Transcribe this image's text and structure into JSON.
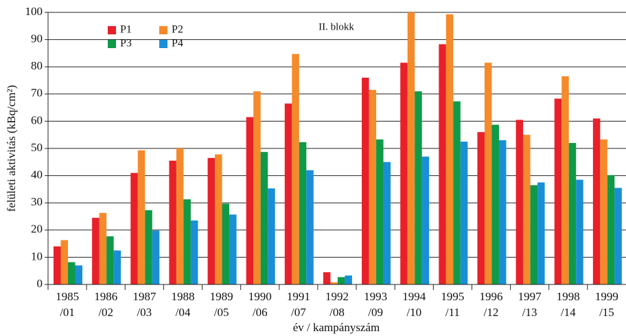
{
  "chart_data": {
    "type": "bar",
    "annotation": "II. blokk",
    "ylabel": "felületi aktivitás (kBq/cm²)",
    "xlabel": "év / kampányszám",
    "categories": [
      [
        "1985",
        "/01"
      ],
      [
        "1986",
        "/02"
      ],
      [
        "1987",
        "/03"
      ],
      [
        "1988",
        "/04"
      ],
      [
        "1989",
        "/05"
      ],
      [
        "1990",
        "/06"
      ],
      [
        "1991",
        "/07"
      ],
      [
        "1992",
        "/08"
      ],
      [
        "1993",
        "/09"
      ],
      [
        "1994",
        "/10"
      ],
      [
        "1995",
        "/11"
      ],
      [
        "1996",
        "/12"
      ],
      [
        "1997",
        "/13"
      ],
      [
        "1998",
        "/14"
      ],
      [
        "1999",
        "/15"
      ]
    ],
    "series": [
      {
        "name": "P1",
        "color": "#e8202a",
        "values": [
          14,
          24.5,
          41,
          45.5,
          46.5,
          61.5,
          66.5,
          4.5,
          76,
          81.5,
          88.3,
          56,
          60.5,
          68.3,
          61
        ]
      },
      {
        "name": "P2",
        "color": "#f58a2a",
        "values": [
          16.3,
          26.3,
          49.3,
          50,
          47.8,
          71,
          84.7,
          0.8,
          71.5,
          100,
          99.3,
          81.5,
          55,
          76.5,
          53.3
        ]
      },
      {
        "name": "P3",
        "color": "#0f9a48",
        "values": [
          8.2,
          17.7,
          27.3,
          31.3,
          29.7,
          48.7,
          52.3,
          2.7,
          53.3,
          71,
          67.3,
          58.7,
          36.5,
          52,
          40.2
        ]
      },
      {
        "name": "P4",
        "color": "#1a8fd6",
        "values": [
          7,
          12.5,
          19.8,
          23.5,
          25.7,
          35.3,
          42,
          3.3,
          45,
          47,
          52.5,
          53,
          37.5,
          38.5,
          35.5
        ]
      }
    ],
    "ylim": [
      0,
      100
    ],
    "yticks": [
      0,
      10,
      20,
      30,
      40,
      50,
      60,
      70,
      80,
      90,
      100
    ],
    "grid": true
  }
}
